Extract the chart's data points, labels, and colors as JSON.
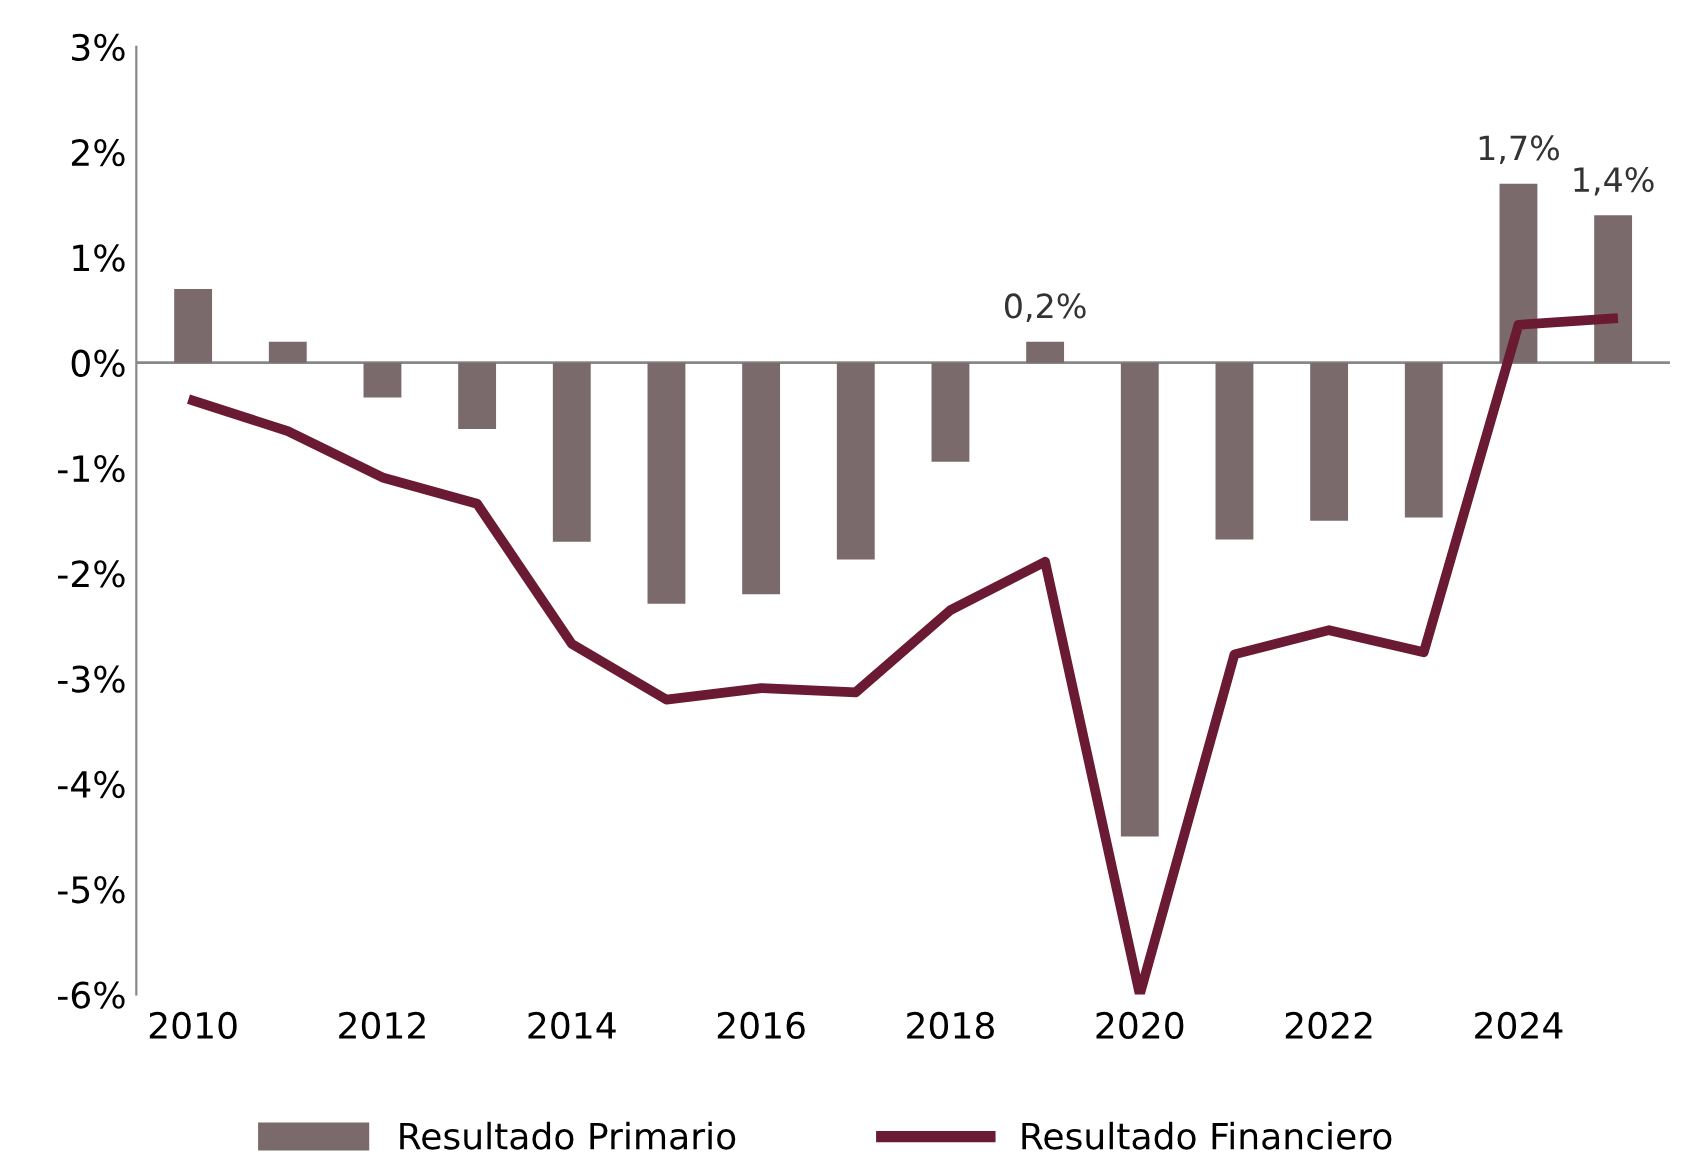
{
  "chart_data": {
    "type": "bar",
    "categories": [
      "2010",
      null,
      "2012",
      null,
      "2014",
      null,
      "2016",
      null,
      "2018",
      null,
      "2020",
      null,
      "2022",
      null,
      "2024",
      null
    ],
    "series": [
      {
        "name": "Resultado Primario",
        "color": "#7a6a6b",
        "values": [
          0.7,
          0.2,
          -0.33,
          -0.63,
          -1.7,
          -2.29,
          -2.2,
          -1.87,
          -0.94,
          0.2,
          -4.5,
          -1.68,
          -1.5,
          -1.47,
          1.7,
          1.4
        ],
        "value_labels": [
          null,
          null,
          null,
          null,
          null,
          null,
          null,
          null,
          null,
          "0,2%",
          null,
          null,
          null,
          null,
          "1,7%",
          "1,4%"
        ]
      },
      {
        "name": "Resultado Financiero",
        "type": "line",
        "color": "#6b1a34",
        "values": [
          -0.36,
          -0.65,
          -1.09,
          -1.34,
          -2.67,
          -3.2,
          -3.09,
          -3.13,
          -2.35,
          -1.89,
          -6.0,
          -2.77,
          -2.54,
          -2.75,
          0.36,
          0.42
        ]
      }
    ],
    "ylim": [
      -6,
      3
    ],
    "yticks": [
      {
        "value": 3,
        "label": "3%"
      },
      {
        "value": 2,
        "label": "2%"
      },
      {
        "value": 1,
        "label": "1%"
      },
      {
        "value": 0,
        "label": "0%"
      },
      {
        "value": -1,
        "label": "-1%"
      },
      {
        "value": -2,
        "label": "-2%"
      },
      {
        "value": -3,
        "label": "-3%"
      },
      {
        "value": -4,
        "label": "-4%"
      },
      {
        "value": -5,
        "label": "-5%"
      },
      {
        "value": -6,
        "label": "-6%"
      }
    ],
    "legend": "bottom",
    "line_style": "solid",
    "marker": "none"
  }
}
